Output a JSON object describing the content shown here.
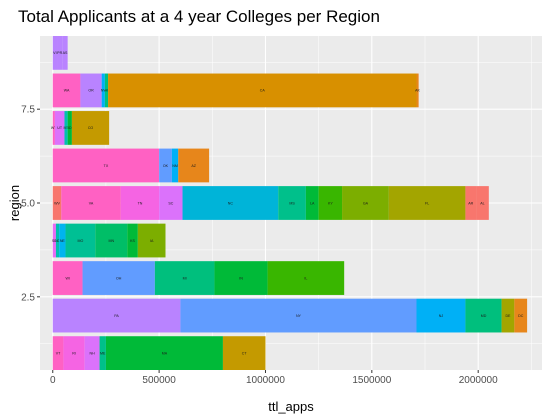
{
  "chart_data": {
    "type": "bar",
    "orientation": "horizontal",
    "stacked": true,
    "title": "Total Applicants at a 4 year Colleges per Region",
    "xlabel": "ttl_apps",
    "ylabel": "region",
    "xlim": [
      -60000,
      2300000
    ],
    "ylim": [
      0.55,
      9.45
    ],
    "x_ticks": [
      0,
      500000,
      1000000,
      1500000,
      2000000
    ],
    "x_tick_labels": [
      "0",
      "500000",
      "1000000",
      "1500000",
      "2000000"
    ],
    "y_ticks": [
      2.5,
      5.0,
      7.5
    ],
    "y_tick_labels": [
      "2.5",
      "5.0",
      "7.5"
    ],
    "grid": true,
    "legend": "none",
    "bars": [
      {
        "region": 1,
        "segments": [
          {
            "label": "VT",
            "value": 50000,
            "color": "#FF61C3"
          },
          {
            "label": "RI",
            "value": 100000,
            "color": "#F564E3"
          },
          {
            "label": "NH",
            "value": 70000,
            "color": "#DB72FB"
          },
          {
            "label": "ME",
            "value": 30000,
            "color": "#00C08B"
          },
          {
            "label": "MA",
            "value": 550000,
            "color": "#00BA38"
          },
          {
            "label": "CT",
            "value": 200000,
            "color": "#C49A00"
          }
        ]
      },
      {
        "region": 2,
        "segments": [
          {
            "label": "PA",
            "value": 600000,
            "color": "#B983FF"
          },
          {
            "label": "NY",
            "value": 1110000,
            "color": "#619CFF"
          },
          {
            "label": "NJ",
            "value": 230000,
            "color": "#00B0F6"
          },
          {
            "label": "MD",
            "value": 170000,
            "color": "#00BF7D"
          },
          {
            "label": "DE",
            "value": 60000,
            "color": "#A3A500"
          },
          {
            "label": "DC",
            "value": 60000,
            "color": "#E7861B"
          }
        ]
      },
      {
        "region": 3,
        "segments": [
          {
            "label": "WI",
            "value": 140000,
            "color": "#FF61C3"
          },
          {
            "label": "OH",
            "value": 340000,
            "color": "#619CFF"
          },
          {
            "label": "MI",
            "value": 280000,
            "color": "#00BF7D"
          },
          {
            "label": "IN",
            "value": 250000,
            "color": "#00BA38"
          },
          {
            "label": "IL",
            "value": 360000,
            "color": "#39B600"
          }
        ]
      },
      {
        "region": 4,
        "segments": [
          {
            "label": "SD",
            "value": 15000,
            "color": "#E76BF3"
          },
          {
            "label": "ND",
            "value": 15000,
            "color": "#00C0AF"
          },
          {
            "label": "NE",
            "value": 30000,
            "color": "#00B4EF"
          },
          {
            "label": "MO",
            "value": 140000,
            "color": "#00C094"
          },
          {
            "label": "MN",
            "value": 150000,
            "color": "#00BE67"
          },
          {
            "label": "KS",
            "value": 50000,
            "color": "#00BA38"
          },
          {
            "label": "IA",
            "value": 130000,
            "color": "#7CAE00"
          }
        ]
      },
      {
        "region": 5,
        "segments": [
          {
            "label": "WV",
            "value": 40000,
            "color": "#F8766D"
          },
          {
            "label": "VA",
            "value": 280000,
            "color": "#FF61C3"
          },
          {
            "label": "TN",
            "value": 180000,
            "color": "#F564E3"
          },
          {
            "label": "SC",
            "value": 110000,
            "color": "#DB72FB"
          },
          {
            "label": "NC",
            "value": 450000,
            "color": "#00B4D8"
          },
          {
            "label": "MS",
            "value": 130000,
            "color": "#00C08B"
          },
          {
            "label": "LA",
            "value": 60000,
            "color": "#00BA38"
          },
          {
            "label": "KY",
            "value": 110000,
            "color": "#39B600"
          },
          {
            "label": "GA",
            "value": 220000,
            "color": "#7CAE00"
          },
          {
            "label": "FL",
            "value": 360000,
            "color": "#A3A500"
          },
          {
            "label": "AR",
            "value": 50000,
            "color": "#F8766D"
          },
          {
            "label": "AL",
            "value": 60000,
            "color": "#F8766D"
          }
        ]
      },
      {
        "region": 6,
        "segments": [
          {
            "label": "TX",
            "value": 500000,
            "color": "#FF61C3"
          },
          {
            "label": "OK",
            "value": 60000,
            "color": "#619CFF"
          },
          {
            "label": "NM",
            "value": 30000,
            "color": "#00B0F6"
          },
          {
            "label": "AZ",
            "value": 145000,
            "color": "#E7861B"
          }
        ]
      },
      {
        "region": 7,
        "segments": [
          {
            "label": "WY",
            "value": 10000,
            "color": "#FF61C3"
          },
          {
            "label": "UT",
            "value": 45000,
            "color": "#DB72FB"
          },
          {
            "label": "MT",
            "value": 15000,
            "color": "#00C0AF"
          },
          {
            "label": "ID",
            "value": 20000,
            "color": "#00BA38"
          },
          {
            "label": "CO",
            "value": 175000,
            "color": "#C49A00"
          }
        ]
      },
      {
        "region": 8,
        "segments": [
          {
            "label": "WA",
            "value": 130000,
            "color": "#FF61C3"
          },
          {
            "label": "OR",
            "value": 100000,
            "color": "#B983FF"
          },
          {
            "label": "NV",
            "value": 15000,
            "color": "#00B0F6"
          },
          {
            "label": "HI",
            "value": 15000,
            "color": "#00BF7D"
          },
          {
            "label": "CA",
            "value": 1450000,
            "color": "#D89000"
          },
          {
            "label": "AK",
            "value": 10000,
            "color": "#E7861B"
          }
        ]
      },
      {
        "region": 9,
        "segments": [
          {
            "label": "VI",
            "value": 20000,
            "color": "#B983FF"
          },
          {
            "label": "PR",
            "value": 25000,
            "color": "#B983FF"
          },
          {
            "label": "AS",
            "value": 25000,
            "color": "#B983FF"
          }
        ]
      }
    ]
  }
}
